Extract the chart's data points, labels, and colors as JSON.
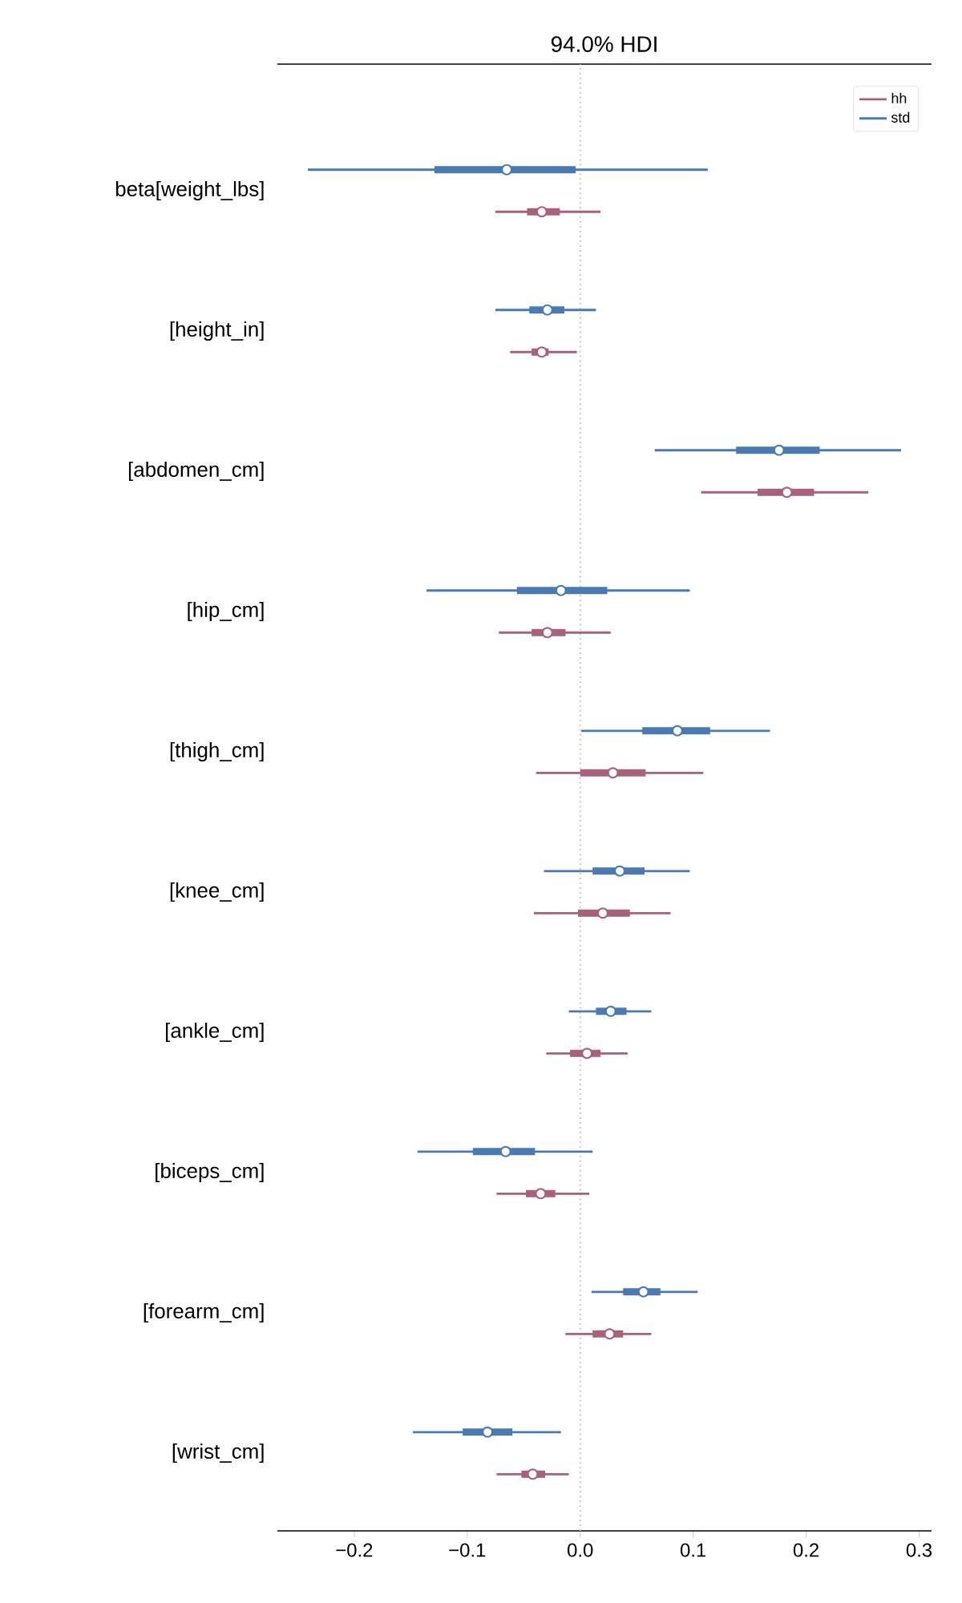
{
  "chart_data": {
    "type": "box",
    "orientation": "horizontal",
    "title": "94.0% HDI",
    "categories": [
      "beta[weight_lbs]",
      "[height_in]",
      "[abdomen_cm]",
      "[hip_cm]",
      "[thigh_cm]",
      "[knee_cm]",
      "[ankle_cm]",
      "[biceps_cm]",
      "[forearm_cm]",
      "[wrist_cm]"
    ],
    "series": [
      {
        "name": "hh",
        "color": "#a8617b",
        "boxes": [
          {
            "low": -0.075,
            "q1": -0.047,
            "median": -0.034,
            "q3": -0.018,
            "high": 0.018
          },
          {
            "low": -0.062,
            "q1": -0.043,
            "median": -0.034,
            "q3": -0.028,
            "high": -0.003
          },
          {
            "low": 0.107,
            "q1": 0.157,
            "median": 0.183,
            "q3": 0.207,
            "high": 0.255
          },
          {
            "low": -0.072,
            "q1": -0.043,
            "median": -0.029,
            "q3": -0.013,
            "high": 0.027
          },
          {
            "low": -0.039,
            "q1": 0.0,
            "median": 0.029,
            "q3": 0.058,
            "high": 0.109
          },
          {
            "low": -0.041,
            "q1": -0.002,
            "median": 0.02,
            "q3": 0.044,
            "high": 0.08
          },
          {
            "low": -0.03,
            "q1": -0.009,
            "median": 0.006,
            "q3": 0.018,
            "high": 0.042
          },
          {
            "low": -0.074,
            "q1": -0.048,
            "median": -0.035,
            "q3": -0.022,
            "high": 0.008
          },
          {
            "low": -0.013,
            "q1": 0.011,
            "median": 0.026,
            "q3": 0.038,
            "high": 0.063
          },
          {
            "low": -0.074,
            "q1": -0.052,
            "median": -0.042,
            "q3": -0.031,
            "high": -0.01
          }
        ]
      },
      {
        "name": "std",
        "color": "#4b79b1",
        "boxes": [
          {
            "low": -0.241,
            "q1": -0.129,
            "median": -0.065,
            "q3": -0.004,
            "high": 0.113
          },
          {
            "low": -0.075,
            "q1": -0.045,
            "median": -0.029,
            "q3": -0.014,
            "high": 0.014
          },
          {
            "low": 0.066,
            "q1": 0.138,
            "median": 0.176,
            "q3": 0.212,
            "high": 0.284
          },
          {
            "low": -0.136,
            "q1": -0.056,
            "median": -0.017,
            "q3": 0.024,
            "high": 0.097
          },
          {
            "low": 0.001,
            "q1": 0.055,
            "median": 0.086,
            "q3": 0.115,
            "high": 0.168
          },
          {
            "low": -0.032,
            "q1": 0.011,
            "median": 0.035,
            "q3": 0.057,
            "high": 0.097
          },
          {
            "low": -0.01,
            "q1": 0.014,
            "median": 0.027,
            "q3": 0.041,
            "high": 0.063
          },
          {
            "low": -0.144,
            "q1": -0.095,
            "median": -0.066,
            "q3": -0.04,
            "high": 0.011
          },
          {
            "low": 0.01,
            "q1": 0.038,
            "median": 0.056,
            "q3": 0.071,
            "high": 0.104
          },
          {
            "low": -0.148,
            "q1": -0.104,
            "median": -0.082,
            "q3": -0.06,
            "high": -0.017
          }
        ]
      }
    ],
    "xlim": [
      -0.268,
      0.311
    ],
    "xticks": [
      {
        "value": -0.2,
        "label": "−0.2"
      },
      {
        "value": -0.1,
        "label": "−0.1"
      },
      {
        "value": 0,
        "label": "0.0"
      },
      {
        "value": 0.1,
        "label": "0.1"
      },
      {
        "value": 0.2,
        "label": "0.2"
      },
      {
        "value": 0.3,
        "label": "0.3"
      }
    ],
    "ref_lines": [
      {
        "axis": "x",
        "value": 0,
        "color": "#c8c8c8",
        "line_style": "dotted"
      }
    ],
    "legend": "top right",
    "marker": "circle"
  }
}
